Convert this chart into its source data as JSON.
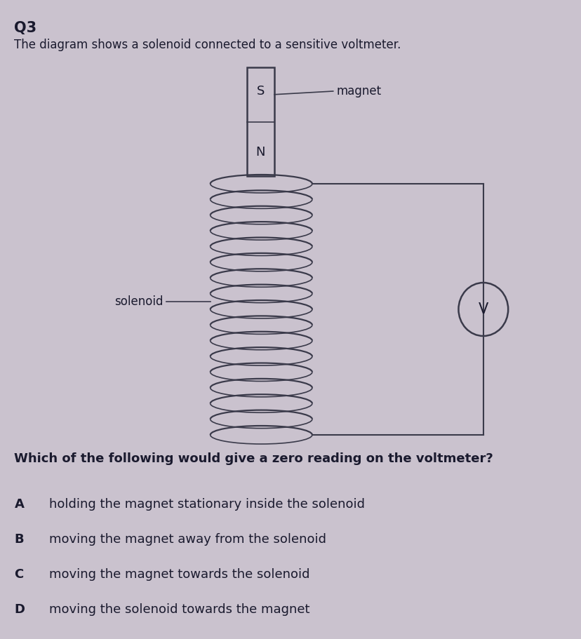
{
  "background_color": "#cac2ce",
  "title_q": "Q3",
  "subtitle": "The diagram shows a solenoid connected to a sensitive voltmeter.",
  "question": "Which of the following would give a zero reading on the voltmeter?",
  "options": [
    [
      "A",
      "holding the magnet stationary inside the solenoid"
    ],
    [
      "B",
      "moving the magnet away from the solenoid"
    ],
    [
      "C",
      "moving the magnet towards the solenoid"
    ],
    [
      "D",
      "moving the solenoid towards the magnet"
    ]
  ],
  "magnet_label_s": "S",
  "magnet_label_n": "N",
  "magnet_annotation": "magnet",
  "solenoid_label": "solenoid",
  "voltmeter_label": "V",
  "diagram_line_color": "#3a3a4a",
  "magnet_fill": "#cac2ce",
  "text_color": "#1a1a2e"
}
